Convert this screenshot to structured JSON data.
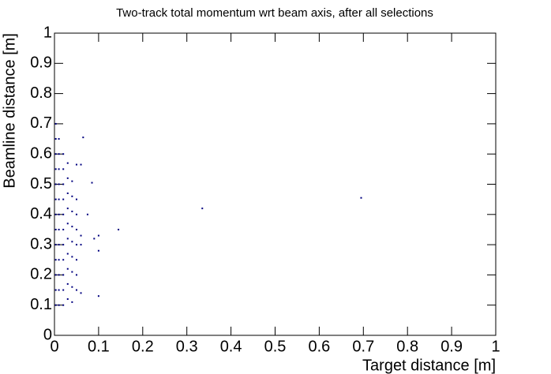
{
  "chart_data": {
    "type": "scatter",
    "title": "Two-track total momentum wrt beam axis, after all selections",
    "x_label": "Target distance [m]",
    "y_label": "Beamline distance [m]",
    "color": "#00007f",
    "xlim": [
      0,
      1
    ],
    "ylim": [
      0,
      1
    ],
    "xticks": [
      0,
      0.1,
      0.2,
      0.3,
      0.4,
      0.5,
      0.6,
      0.7,
      0.8,
      0.9,
      1
    ],
    "yticks": [
      0,
      0.1,
      0.2,
      0.3,
      0.4,
      0.5,
      0.6,
      0.7,
      0.8,
      0.9,
      1
    ],
    "x": [
      0.003,
      0.003,
      0.003,
      0.003,
      0.003,
      0.003,
      0.003,
      0.003,
      0.003,
      0.003,
      0.003,
      0.003,
      0.003,
      0.01,
      0.01,
      0.01,
      0.01,
      0.01,
      0.01,
      0.01,
      0.01,
      0.01,
      0.01,
      0.01,
      0.01,
      0.02,
      0.02,
      0.02,
      0.02,
      0.02,
      0.02,
      0.02,
      0.02,
      0.02,
      0.02,
      0.02,
      0.03,
      0.03,
      0.03,
      0.03,
      0.03,
      0.03,
      0.03,
      0.03,
      0.03,
      0.03,
      0.04,
      0.04,
      0.04,
      0.04,
      0.04,
      0.04,
      0.04,
      0.04,
      0.04,
      0.05,
      0.05,
      0.05,
      0.05,
      0.05,
      0.05,
      0.05,
      0.065,
      0.085,
      0.05,
      0.06,
      0.075,
      0.09,
      0.1,
      0.1,
      0.1,
      0.145,
      0.335,
      0.695,
      0.06,
      0.06,
      0.06
    ],
    "y": [
      0.1,
      0.15,
      0.2,
      0.25,
      0.3,
      0.35,
      0.4,
      0.45,
      0.5,
      0.55,
      0.6,
      0.65,
      0.7,
      0.1,
      0.15,
      0.2,
      0.25,
      0.3,
      0.35,
      0.4,
      0.45,
      0.5,
      0.55,
      0.6,
      0.65,
      0.1,
      0.15,
      0.2,
      0.25,
      0.3,
      0.35,
      0.4,
      0.45,
      0.5,
      0.55,
      0.6,
      0.12,
      0.17,
      0.22,
      0.27,
      0.32,
      0.37,
      0.42,
      0.47,
      0.52,
      0.57,
      0.11,
      0.16,
      0.21,
      0.26,
      0.31,
      0.36,
      0.41,
      0.46,
      0.51,
      0.15,
      0.2,
      0.25,
      0.3,
      0.35,
      0.4,
      0.45,
      0.655,
      0.505,
      0.565,
      0.565,
      0.4,
      0.32,
      0.33,
      0.28,
      0.13,
      0.35,
      0.42,
      0.455,
      0.33,
      0.3,
      0.14
    ]
  }
}
